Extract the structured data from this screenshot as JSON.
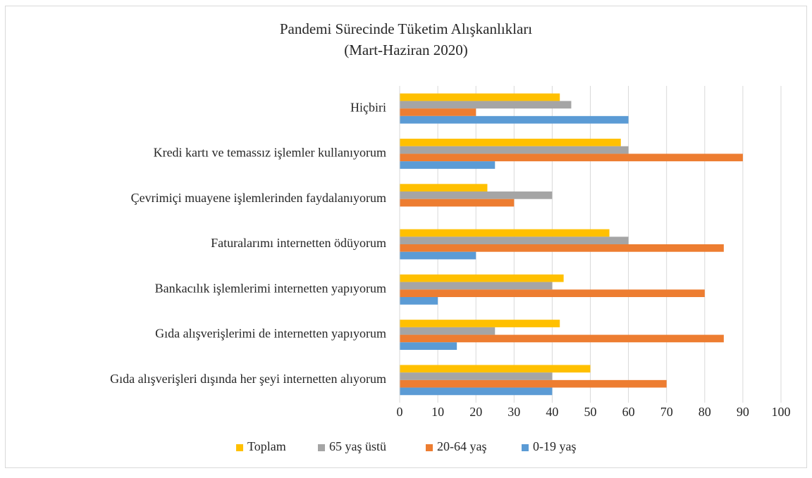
{
  "chart_data": {
    "type": "bar",
    "orientation": "horizontal",
    "title": "Pandemi Sürecinde Tüketim Alışkanlıkları",
    "subtitle": "(Mart-Haziran 2020)",
    "categories": [
      "Hiçbiri",
      "Kredi kartı ve temassız işlemler kullanıyorum",
      "Çevrimiçi muayene işlemlerinden faydalanıyorum",
      "Faturalarımı internetten ödüyorum",
      "Bankacılık işlemlerimi internetten yapıyorum",
      "Gıda alışverişlerimi de internetten yapıyorum",
      "Gıda alışverişleri dışında her şeyi internetten alıyorum"
    ],
    "series": [
      {
        "name": "Toplam",
        "color": "#ffc000",
        "values": [
          42,
          58,
          23,
          55,
          43,
          42,
          50
        ]
      },
      {
        "name": "65 yaş üstü",
        "color": "#a5a5a5",
        "values": [
          45,
          60,
          40,
          60,
          40,
          25,
          40
        ]
      },
      {
        "name": "20-64 yaş",
        "color": "#ed7d31",
        "values": [
          20,
          90,
          30,
          85,
          80,
          85,
          70
        ]
      },
      {
        "name": "0-19 yaş",
        "color": "#5b9bd5",
        "values": [
          60,
          25,
          null,
          20,
          10,
          15,
          40
        ]
      }
    ],
    "xlim": [
      0,
      100
    ],
    "xticks": [
      0,
      10,
      20,
      30,
      40,
      50,
      60,
      70,
      80,
      90,
      100
    ],
    "grid": true,
    "legend": "bottom"
  }
}
